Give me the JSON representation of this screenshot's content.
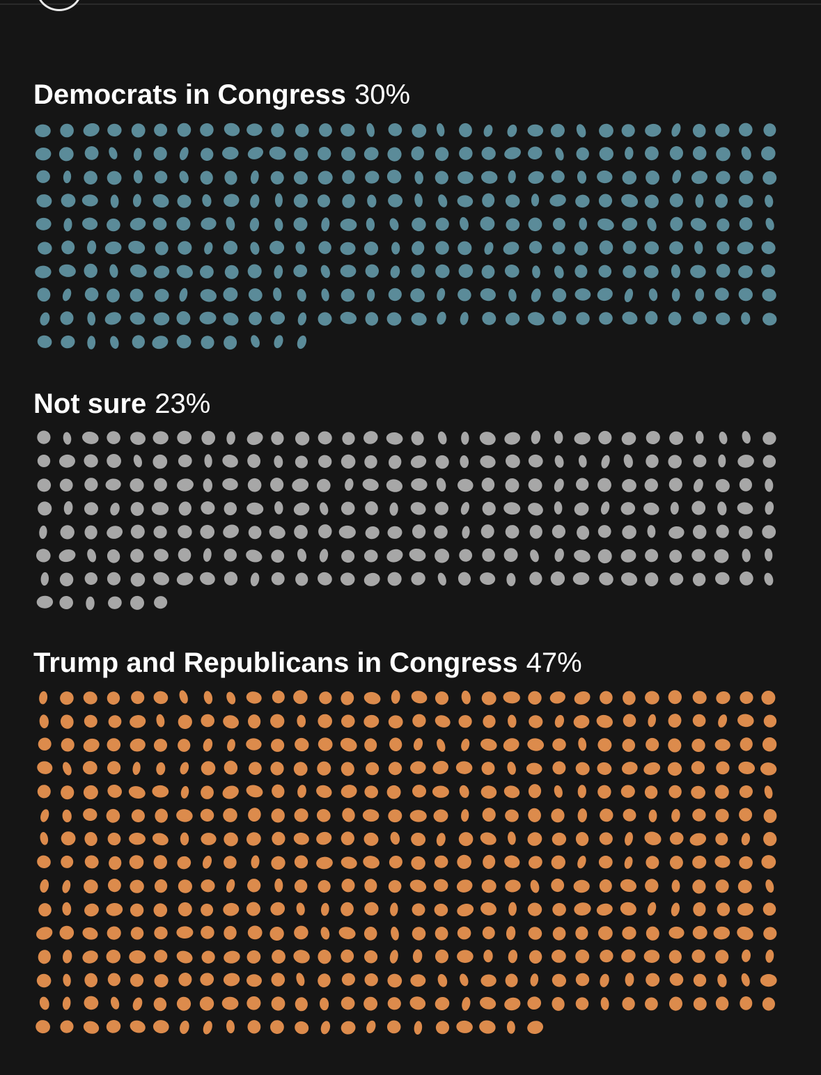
{
  "chart_data": {
    "type": "unit-dot-grid",
    "title": "",
    "groups": [
      {
        "label": "Democrats in Congress",
        "value_text": "30%",
        "value": 30,
        "color": "#5b8b99",
        "dot_count": 300
      },
      {
        "label": "Not sure",
        "value_text": "23%",
        "value": 23,
        "color": "#a7a7a7",
        "dot_count": 230
      },
      {
        "label": "Trump and Republicans in Congress",
        "value_text": "47%",
        "value": 47,
        "color": "#dc8b4c",
        "dot_count": 470
      }
    ],
    "dots_per_row": 32,
    "unit": "each dot = 0.1% of respondents"
  },
  "colors": {
    "background": "#151515",
    "text": "#ffffff"
  }
}
